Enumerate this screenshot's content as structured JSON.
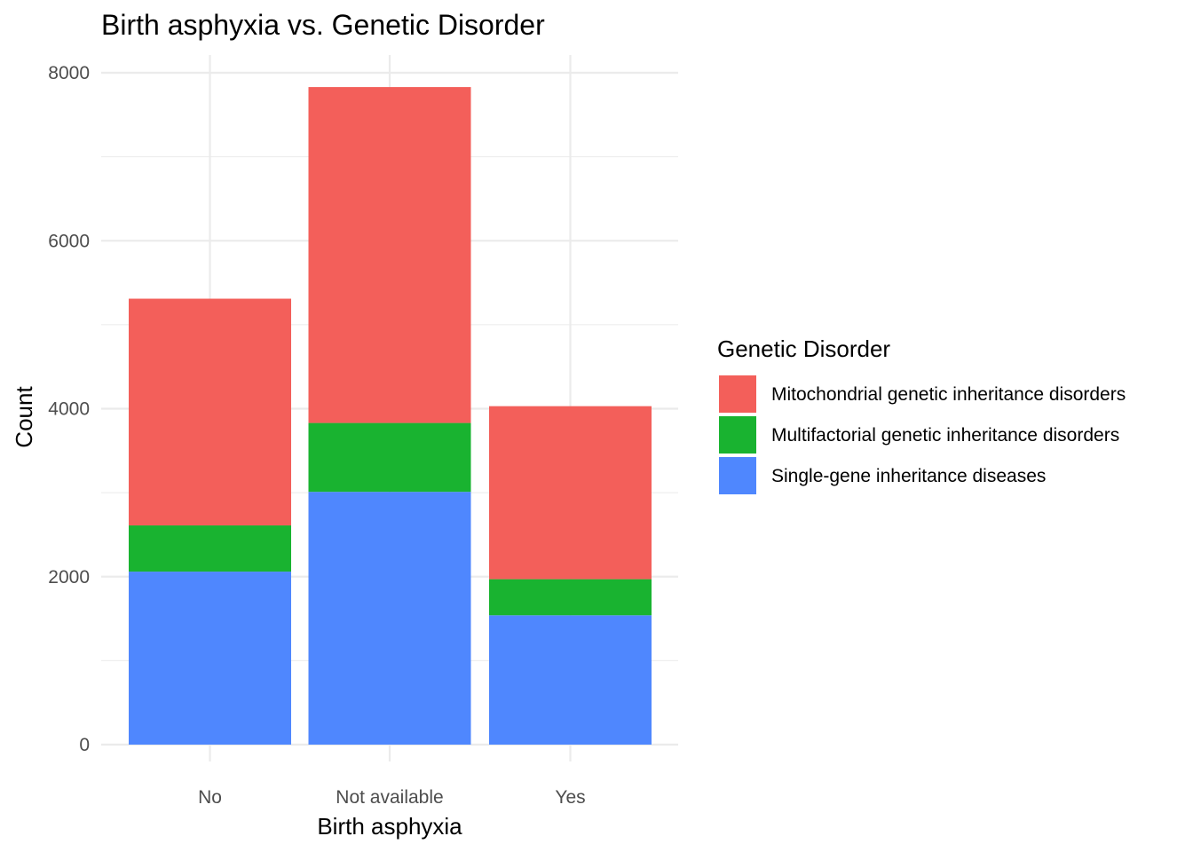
{
  "chart_data": {
    "type": "bar",
    "stacked": true,
    "title": "Birth asphyxia vs. Genetic Disorder",
    "xlabel": "Birth asphyxia",
    "ylabel": "Count",
    "categories": [
      "No",
      "Not available",
      "Yes"
    ],
    "ylim": [
      0,
      8200
    ],
    "yticks": [
      0,
      2000,
      4000,
      6000,
      8000
    ],
    "grid": true,
    "legend": {
      "title": "Genetic Disorder",
      "position": "right"
    },
    "series": [
      {
        "name": "Mitochondrial genetic inheritance disorders",
        "color": "#F35F5A",
        "values": [
          2700,
          4000,
          2060
        ]
      },
      {
        "name": "Multifactorial genetic inheritance disorders",
        "color": "#19B330",
        "values": [
          550,
          820,
          430
        ]
      },
      {
        "name": "Single-gene inheritance diseases",
        "color": "#4F87FE",
        "values": [
          2060,
          3010,
          1540
        ]
      }
    ],
    "stack_order_bottom_to_top": [
      2,
      1,
      0
    ]
  }
}
